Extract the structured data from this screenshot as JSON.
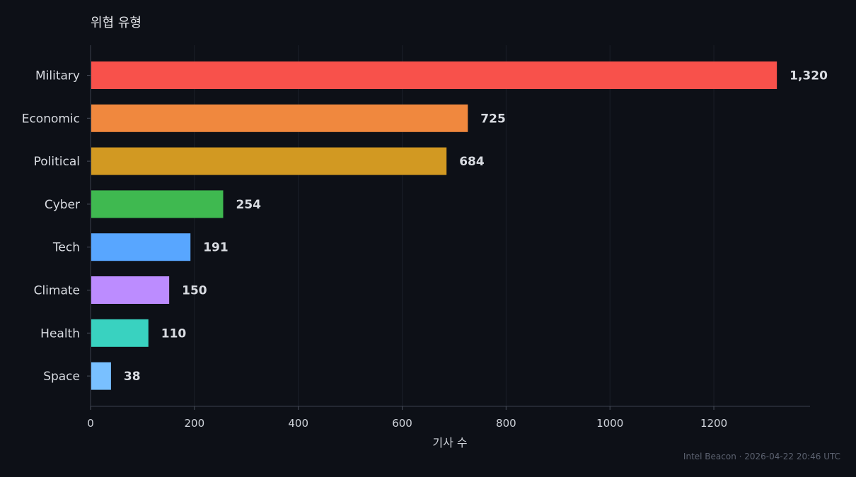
{
  "chart_data": {
    "type": "bar",
    "orientation": "horizontal",
    "title": "위협 유형",
    "xlabel": "기사 수",
    "ylabel": "",
    "categories": [
      "Military",
      "Economic",
      "Political",
      "Cyber",
      "Tech",
      "Climate",
      "Health",
      "Space"
    ],
    "values": [
      1320,
      725,
      684,
      254,
      191,
      150,
      110,
      38
    ],
    "value_labels": [
      "1,320",
      "725",
      "684",
      "254",
      "191",
      "150",
      "110",
      "38"
    ],
    "colors": [
      "#f8514b",
      "#f0883e",
      "#d29922",
      "#3fb950",
      "#58a6ff",
      "#bc8cff",
      "#39d2c0",
      "#79c0ff"
    ],
    "xlim": [
      0,
      1385
    ],
    "xticks": [
      0,
      200,
      400,
      600,
      800,
      1000,
      1200
    ],
    "xtick_labels": [
      "0",
      "200",
      "400",
      "600",
      "800",
      "1000",
      "1200"
    ],
    "grid": true,
    "background": "#0d1017"
  },
  "footer": {
    "text": "Intel Beacon · 2026-04-22 20:46 UTC"
  }
}
